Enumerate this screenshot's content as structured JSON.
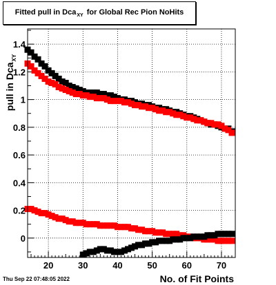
{
  "title": {
    "main": "Fitted pull in Dca",
    "sub": "XY",
    "rest": " for Global Rec Pion NoHits"
  },
  "timestamp": "Thu Sep 22 07:48:05 2022",
  "colors": {
    "black_series": "#000000",
    "red_series": "#ff0000",
    "grid": "#000000",
    "background": "#ffffff"
  },
  "chart_data": {
    "type": "scatter",
    "title": "Fitted pull in Dca_XY for Global Rec Pion NoHits",
    "xlabel": "No. of Fit Points",
    "ylabel": "pull in Dca",
    "ylabel_sub": "XY",
    "xlim": [
      14,
      74
    ],
    "ylim": [
      -0.14,
      1.51
    ],
    "xticks": [
      20,
      30,
      40,
      50,
      60,
      70
    ],
    "xtick_labels": [
      "20",
      "30",
      "40",
      "50",
      "60",
      "70"
    ],
    "yticks": [
      0,
      0.2,
      0.4,
      0.6,
      0.8,
      1,
      1.2,
      1.4
    ],
    "ytick_labels": [
      "0",
      "0.2",
      "0.4",
      "0.6",
      "0.8",
      "1",
      "1.2",
      "1.4"
    ],
    "grid": true,
    "marker": "square",
    "x": [
      14,
      15,
      16,
      17,
      18,
      19,
      20,
      21,
      22,
      23,
      24,
      25,
      26,
      27,
      28,
      29,
      30,
      31,
      32,
      33,
      34,
      35,
      36,
      37,
      38,
      39,
      40,
      41,
      42,
      43,
      44,
      45,
      46,
      47,
      48,
      49,
      50,
      51,
      52,
      53,
      54,
      55,
      56,
      57,
      58,
      59,
      60,
      61,
      62,
      63,
      64,
      65,
      66,
      67,
      68,
      69,
      70,
      71,
      72,
      73
    ],
    "series": [
      {
        "color": "#000000",
        "values": [
          1.36,
          1.34,
          1.31,
          1.29,
          1.26,
          1.24,
          1.21,
          1.19,
          1.17,
          1.15,
          1.13,
          1.12,
          1.1,
          1.09,
          1.08,
          1.07,
          1.06,
          1.05,
          1.05,
          1.05,
          1.05,
          1.04,
          1.04,
          1.03,
          1.03,
          1.02,
          1.01,
          1.0,
          1.0,
          0.99,
          0.99,
          0.98,
          0.97,
          0.97,
          0.96,
          0.96,
          0.95,
          0.94,
          0.94,
          0.93,
          0.93,
          0.92,
          0.91,
          0.91,
          0.9,
          0.89,
          0.88,
          0.88,
          0.87,
          0.86,
          0.85,
          0.84,
          0.83,
          0.82,
          0.82,
          0.81,
          0.8,
          0.79,
          0.79,
          0.77
        ]
      },
      {
        "color": "#ff0000",
        "values": [
          1.26,
          1.24,
          1.21,
          1.19,
          1.17,
          1.15,
          1.13,
          1.12,
          1.11,
          1.09,
          1.08,
          1.07,
          1.06,
          1.05,
          1.04,
          1.04,
          1.03,
          1.03,
          1.02,
          1.02,
          1.01,
          1.01,
          1.01,
          1.0,
          0.99,
          0.99,
          0.99,
          0.99,
          0.98,
          0.98,
          0.97,
          0.96,
          0.96,
          0.95,
          0.95,
          0.94,
          0.94,
          0.93,
          0.92,
          0.92,
          0.91,
          0.91,
          0.9,
          0.89,
          0.89,
          0.88,
          0.87,
          0.87,
          0.86,
          0.85,
          0.85,
          0.84,
          0.83,
          0.83,
          0.82,
          0.82,
          0.81,
          0.79,
          0.78,
          0.76
        ]
      },
      {
        "color": "#ff0000",
        "values": [
          0.21,
          0.21,
          0.2,
          0.19,
          0.18,
          0.18,
          0.17,
          0.16,
          0.15,
          0.14,
          0.14,
          0.13,
          0.12,
          0.12,
          0.11,
          0.11,
          0.11,
          0.1,
          0.1,
          0.1,
          0.1,
          0.09,
          0.09,
          0.09,
          0.09,
          0.09,
          0.08,
          0.08,
          0.08,
          0.08,
          0.07,
          0.07,
          0.06,
          0.06,
          0.05,
          0.05,
          0.05,
          0.04,
          0.04,
          0.04,
          0.03,
          0.03,
          0.03,
          0.03,
          0.02,
          0.02,
          0.01,
          0.01,
          0.0,
          0.0,
          0.0,
          -0.01,
          -0.01,
          -0.01,
          -0.01,
          -0.02,
          -0.02,
          -0.02,
          -0.02,
          -0.02
        ]
      },
      {
        "color": "#000000",
        "values": [
          null,
          null,
          null,
          null,
          null,
          null,
          null,
          null,
          null,
          null,
          null,
          null,
          null,
          null,
          null,
          null,
          -0.12,
          -0.11,
          -0.1,
          -0.1,
          -0.09,
          -0.08,
          -0.08,
          -0.09,
          -0.09,
          -0.1,
          -0.1,
          -0.1,
          -0.09,
          -0.08,
          -0.07,
          -0.06,
          -0.05,
          -0.05,
          -0.04,
          -0.04,
          -0.03,
          -0.03,
          -0.02,
          -0.02,
          -0.02,
          -0.02,
          -0.01,
          -0.01,
          -0.01,
          0.0,
          0.0,
          0.0,
          0.01,
          0.01,
          0.01,
          0.01,
          0.02,
          0.02,
          0.02,
          0.03,
          0.03,
          0.03,
          0.03,
          0.03
        ]
      }
    ]
  }
}
